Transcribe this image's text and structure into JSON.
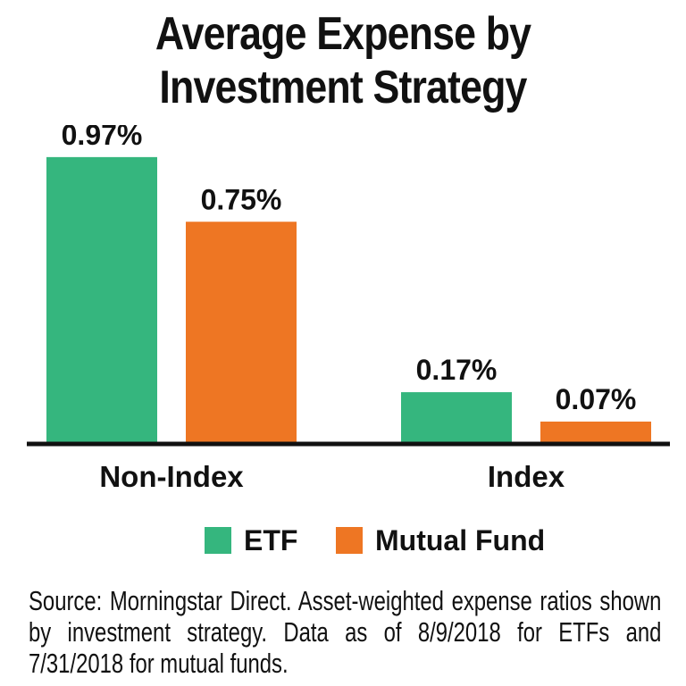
{
  "title_lines": [
    "Average Expense by",
    "Investment Strategy"
  ],
  "legend": [
    {
      "label": "ETF",
      "color": "#35B67E"
    },
    {
      "label": "Mutual Fund",
      "color": "#EE7623"
    }
  ],
  "source_note": "Source: Morningstar Direct. Asset-weighted expense ratios shown by investment strategy. Data as of 8/9/2018 for ETFs and 7/31/2018 for mutual funds.",
  "chart_data": {
    "type": "bar",
    "title": "Average Expense by Investment Strategy",
    "categories": [
      "Non-Index",
      "Index"
    ],
    "series": [
      {
        "name": "ETF",
        "color": "#35B67E",
        "values": [
          0.97,
          0.17
        ],
        "labels": [
          "0.97%",
          "0.17%"
        ]
      },
      {
        "name": "Mutual Fund",
        "color": "#EE7623",
        "values": [
          0.75,
          0.07
        ],
        "labels": [
          "0.75%",
          "0.07%"
        ]
      }
    ],
    "value_unit": "%",
    "ylim": [
      0,
      1.0
    ],
    "grid": false,
    "legend_position": "bottom"
  }
}
